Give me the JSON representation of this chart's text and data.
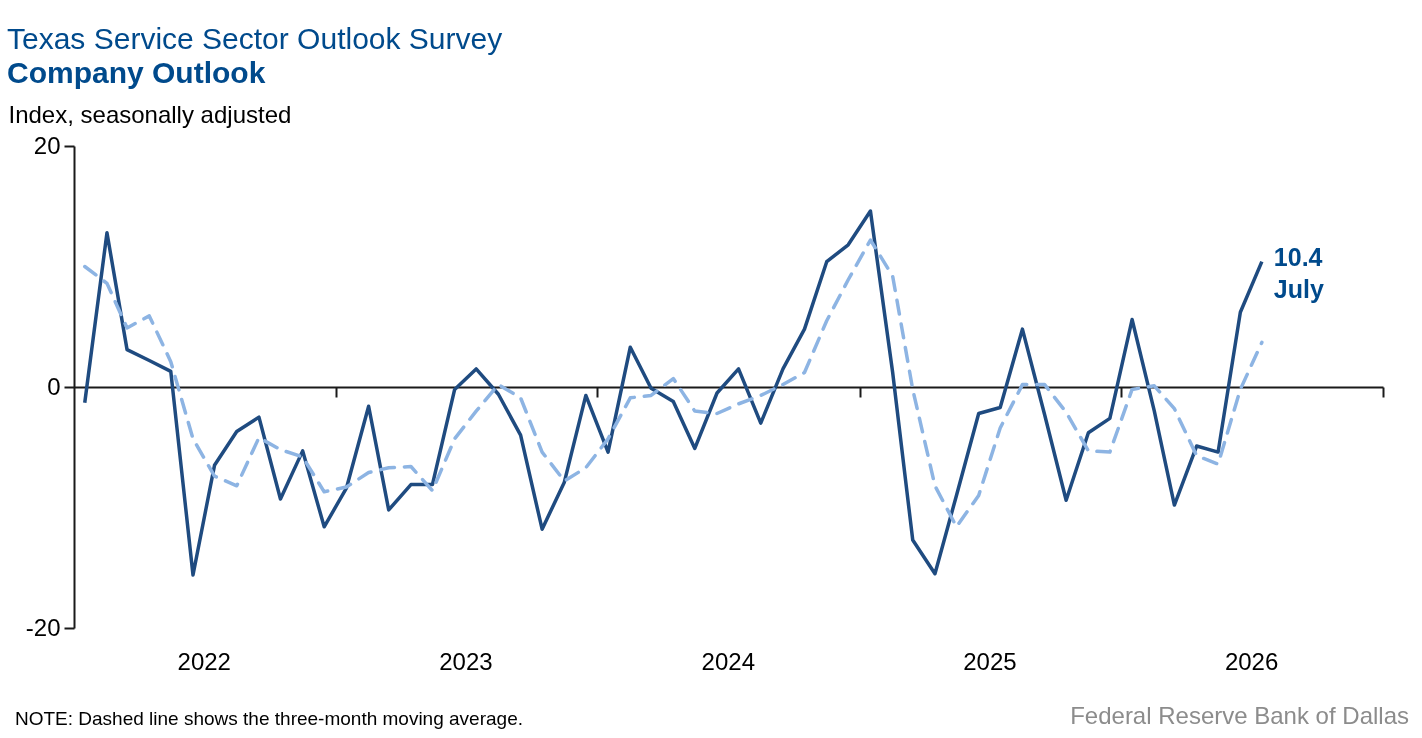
{
  "chart_data": {
    "type": "line",
    "title": "Texas Service Sector Outlook Survey",
    "subtitle": "Company Outlook",
    "ylabel": "Index, seasonally adjusted",
    "x": [
      "2022-01-16",
      "2022-02-16",
      "2022-03-16",
      "2022-04-16",
      "2022-05-16",
      "2022-06-16",
      "2022-07-16",
      "2022-08-16",
      "2022-09-16",
      "2022-10-16",
      "2022-11-16",
      "2022-12-16",
      "2023-01-16",
      "2023-02-16",
      "2023-03-16",
      "2023-04-16",
      "2023-05-16",
      "2023-06-16",
      "2023-07-16",
      "2023-08-16",
      "2023-09-16",
      "2023-10-16",
      "2023-11-16",
      "2023-12-16",
      "2024-01-16",
      "2024-02-16",
      "2024-03-16",
      "2024-04-16",
      "2024-05-16",
      "2024-06-16",
      "2024-07-16",
      "2024-08-16",
      "2024-09-16",
      "2024-10-16",
      "2024-11-16",
      "2024-12-16",
      "2025-01-16",
      "2025-02-16",
      "2025-03-16",
      "2025-04-16",
      "2025-05-16",
      "2025-06-16",
      "2025-07-16",
      "2025-08-16",
      "2025-09-16",
      "2025-10-16",
      "2025-11-16",
      "2025-12-16",
      "2026-01-16",
      "2026-02-16",
      "2026-03-16",
      "2026-04-16",
      "2026-05-16",
      "2026-06-16",
      "2026-07-16"
    ],
    "series": [
      {
        "color": "#1f4b80",
        "line_style": "solid",
        "values": [
          -1.3,
          12.8,
          3.1,
          2.2,
          1.3,
          -15.6,
          -6.5,
          -3.7,
          -2.5,
          -9.3,
          -5.3,
          -11.6,
          -8.4,
          -1.6,
          -10.2,
          -8.1,
          -8.1,
          -0.2,
          1.5,
          -0.6,
          -4.0,
          -11.8,
          -7.9,
          -0.7,
          -5.4,
          3.3,
          -0.1,
          -1.2,
          -5.1,
          -0.5,
          1.5,
          -3.0,
          1.5,
          4.8,
          10.4,
          11.8,
          14.6,
          1.2,
          -12.7,
          -15.5,
          -9.0,
          -2.2,
          -1.7,
          4.8,
          -2.3,
          -9.4,
          -3.8,
          -2.6,
          5.6,
          -2.0,
          -9.8,
          -4.9,
          -5.4,
          6.2,
          10.4
        ]
      },
      {
        "color": "#8db4e3",
        "line_style": "dashed",
        "values": [
          10.0,
          8.6,
          4.9,
          5.9,
          2.1,
          -4.3,
          -7.4,
          -8.2,
          -4.2,
          -5.2,
          -5.8,
          -8.7,
          -8.3,
          -7.1,
          -6.7,
          -6.6,
          -8.6,
          -4.3,
          -2.0,
          0.2,
          -0.9,
          -5.4,
          -7.8,
          -6.7,
          -4.3,
          -0.9,
          -0.7,
          0.7,
          -2.0,
          -2.2,
          -1.4,
          -0.7,
          0.2,
          1.2,
          5.5,
          8.9,
          12.2,
          9.2,
          -0.2,
          -8.2,
          -11.6,
          -9.0,
          -3.4,
          0.2,
          0.2,
          -2.1,
          -5.3,
          -5.4,
          -0.2,
          0.1,
          -1.8,
          -5.7,
          -6.4,
          -0.2,
          3.7
        ]
      }
    ],
    "xlim": [
      "2022-01-01",
      "2027-01-01"
    ],
    "xticks": [
      {
        "value": "2022-07-01",
        "label": "2022"
      },
      {
        "value": "2023-01-01",
        "label": null
      },
      {
        "value": "2023-07-01",
        "label": "2023"
      },
      {
        "value": "2024-01-01",
        "label": null
      },
      {
        "value": "2024-07-01",
        "label": "2024"
      },
      {
        "value": "2025-01-01",
        "label": null
      },
      {
        "value": "2025-07-01",
        "label": "2025"
      },
      {
        "value": "2026-01-01",
        "label": null
      },
      {
        "value": "2026-07-01",
        "label": "2026"
      },
      {
        "value": "2027-01-01",
        "label": null
      }
    ],
    "ylim": [
      -20,
      20
    ],
    "yticks": [
      -20,
      0,
      20
    ],
    "annotations": [
      {
        "text": "10.4\nJuly",
        "x": "2026-07-16",
        "y": 10.4
      },
      "NOTE: Dashed line shows the three-month moving average.",
      "Federal Reserve Bank of Dallas"
    ]
  }
}
